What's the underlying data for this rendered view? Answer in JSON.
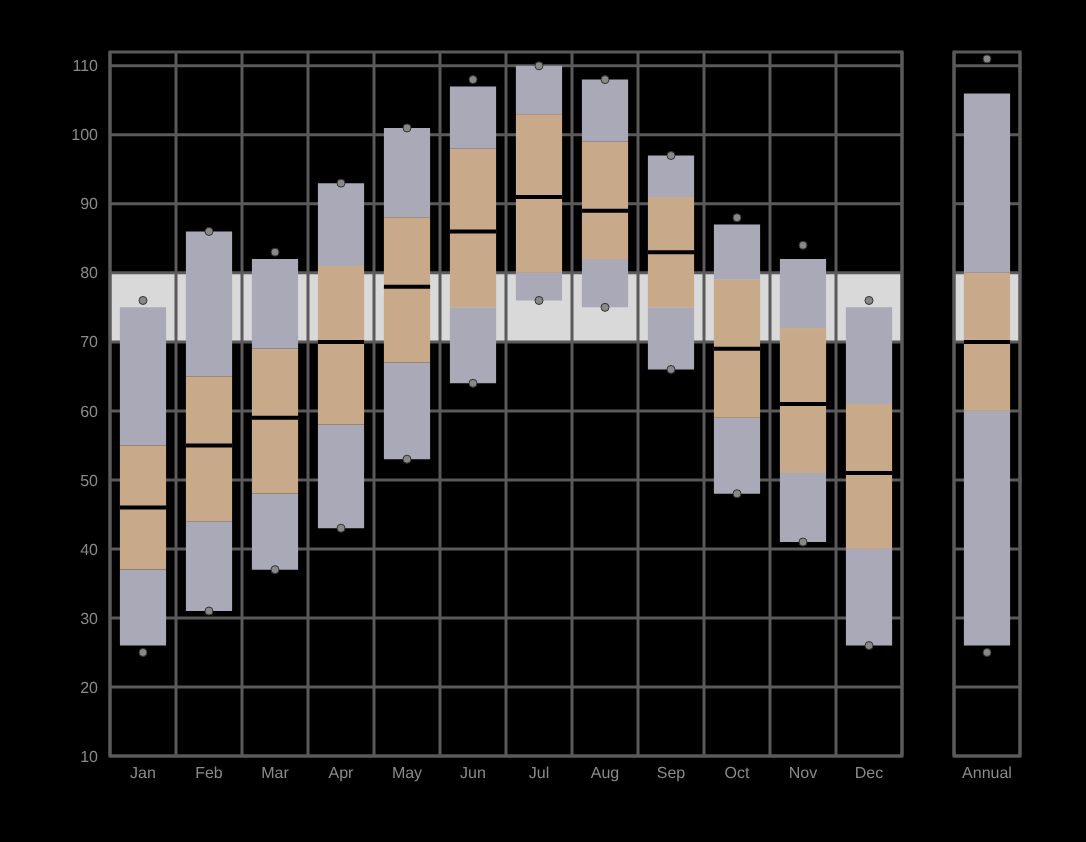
{
  "chart_data": [
    {
      "type": "box",
      "categories": [
        "Jan",
        "Feb",
        "Mar",
        "Apr",
        "May",
        "Jun",
        "Jul",
        "Aug",
        "Sep",
        "Oct",
        "Nov",
        "Dec"
      ],
      "series": [
        {
          "color": "#c8a98a",
          "boxes": [
            {
              "low": 26,
              "q1": 37,
              "median": 46,
              "q3": 55,
              "high": 75,
              "outliers": [
                25,
                76
              ]
            },
            {
              "low": 31,
              "q1": 44,
              "median": 55,
              "q3": 65,
              "high": 86,
              "outliers": [
                31,
                86
              ]
            },
            {
              "low": 37,
              "q1": 48,
              "median": 59,
              "q3": 69,
              "high": 82,
              "outliers": [
                37,
                83
              ]
            },
            {
              "low": 43,
              "q1": 58,
              "median": 70,
              "q3": 81,
              "high": 93,
              "outliers": [
                43,
                93
              ]
            },
            {
              "low": 53,
              "q1": 67,
              "median": 78,
              "q3": 88,
              "high": 101,
              "outliers": [
                53,
                101
              ]
            },
            {
              "low": 64,
              "q1": 75,
              "median": 86,
              "q3": 98,
              "high": 107,
              "outliers": [
                64,
                108
              ]
            },
            {
              "low": 76,
              "q1": 80,
              "median": 91,
              "q3": 103,
              "high": 110,
              "outliers": [
                76,
                110
              ]
            },
            {
              "low": 75,
              "q1": 82,
              "median": 89,
              "q3": 99,
              "high": 108,
              "outliers": [
                75,
                108
              ]
            },
            {
              "low": 66,
              "q1": 75,
              "median": 83,
              "q3": 91,
              "high": 97,
              "outliers": [
                66,
                97
              ]
            },
            {
              "low": 48,
              "q1": 59,
              "median": 69,
              "q3": 79,
              "high": 87,
              "outliers": [
                48,
                88
              ]
            },
            {
              "low": 41,
              "q1": 51,
              "median": 61,
              "q3": 72,
              "high": 82,
              "outliers": [
                41,
                84
              ]
            },
            {
              "low": 26,
              "q1": 40,
              "median": 51,
              "q3": 61,
              "high": 75,
              "outliers": [
                26,
                76
              ]
            }
          ]
        }
      ],
      "ylim": [
        10,
        112
      ],
      "yticks": [
        10,
        20,
        30,
        40,
        50,
        60,
        70,
        80,
        90,
        100,
        110
      ],
      "grid": true,
      "bands": [
        {
          "axis": "y",
          "from": 70,
          "to": 80,
          "color": "#d9d9d9"
        }
      ]
    },
    {
      "type": "box",
      "categories": [
        "Annual"
      ],
      "series": [
        {
          "color": "#c8a98a",
          "boxes": [
            {
              "low": 26,
              "q1": 60,
              "median": 70,
              "q3": 80,
              "high": 106,
              "outliers": [
                25,
                111
              ]
            }
          ]
        }
      ],
      "ylim": [
        10,
        112
      ],
      "yticks": [
        10,
        20,
        30,
        40,
        50,
        60,
        70,
        80,
        90,
        100,
        110
      ],
      "grid": true,
      "tick_labels": "x",
      "bands": [
        {
          "axis": "y",
          "from": 70,
          "to": 80,
          "color": "#d9d9d9"
        }
      ]
    }
  ]
}
